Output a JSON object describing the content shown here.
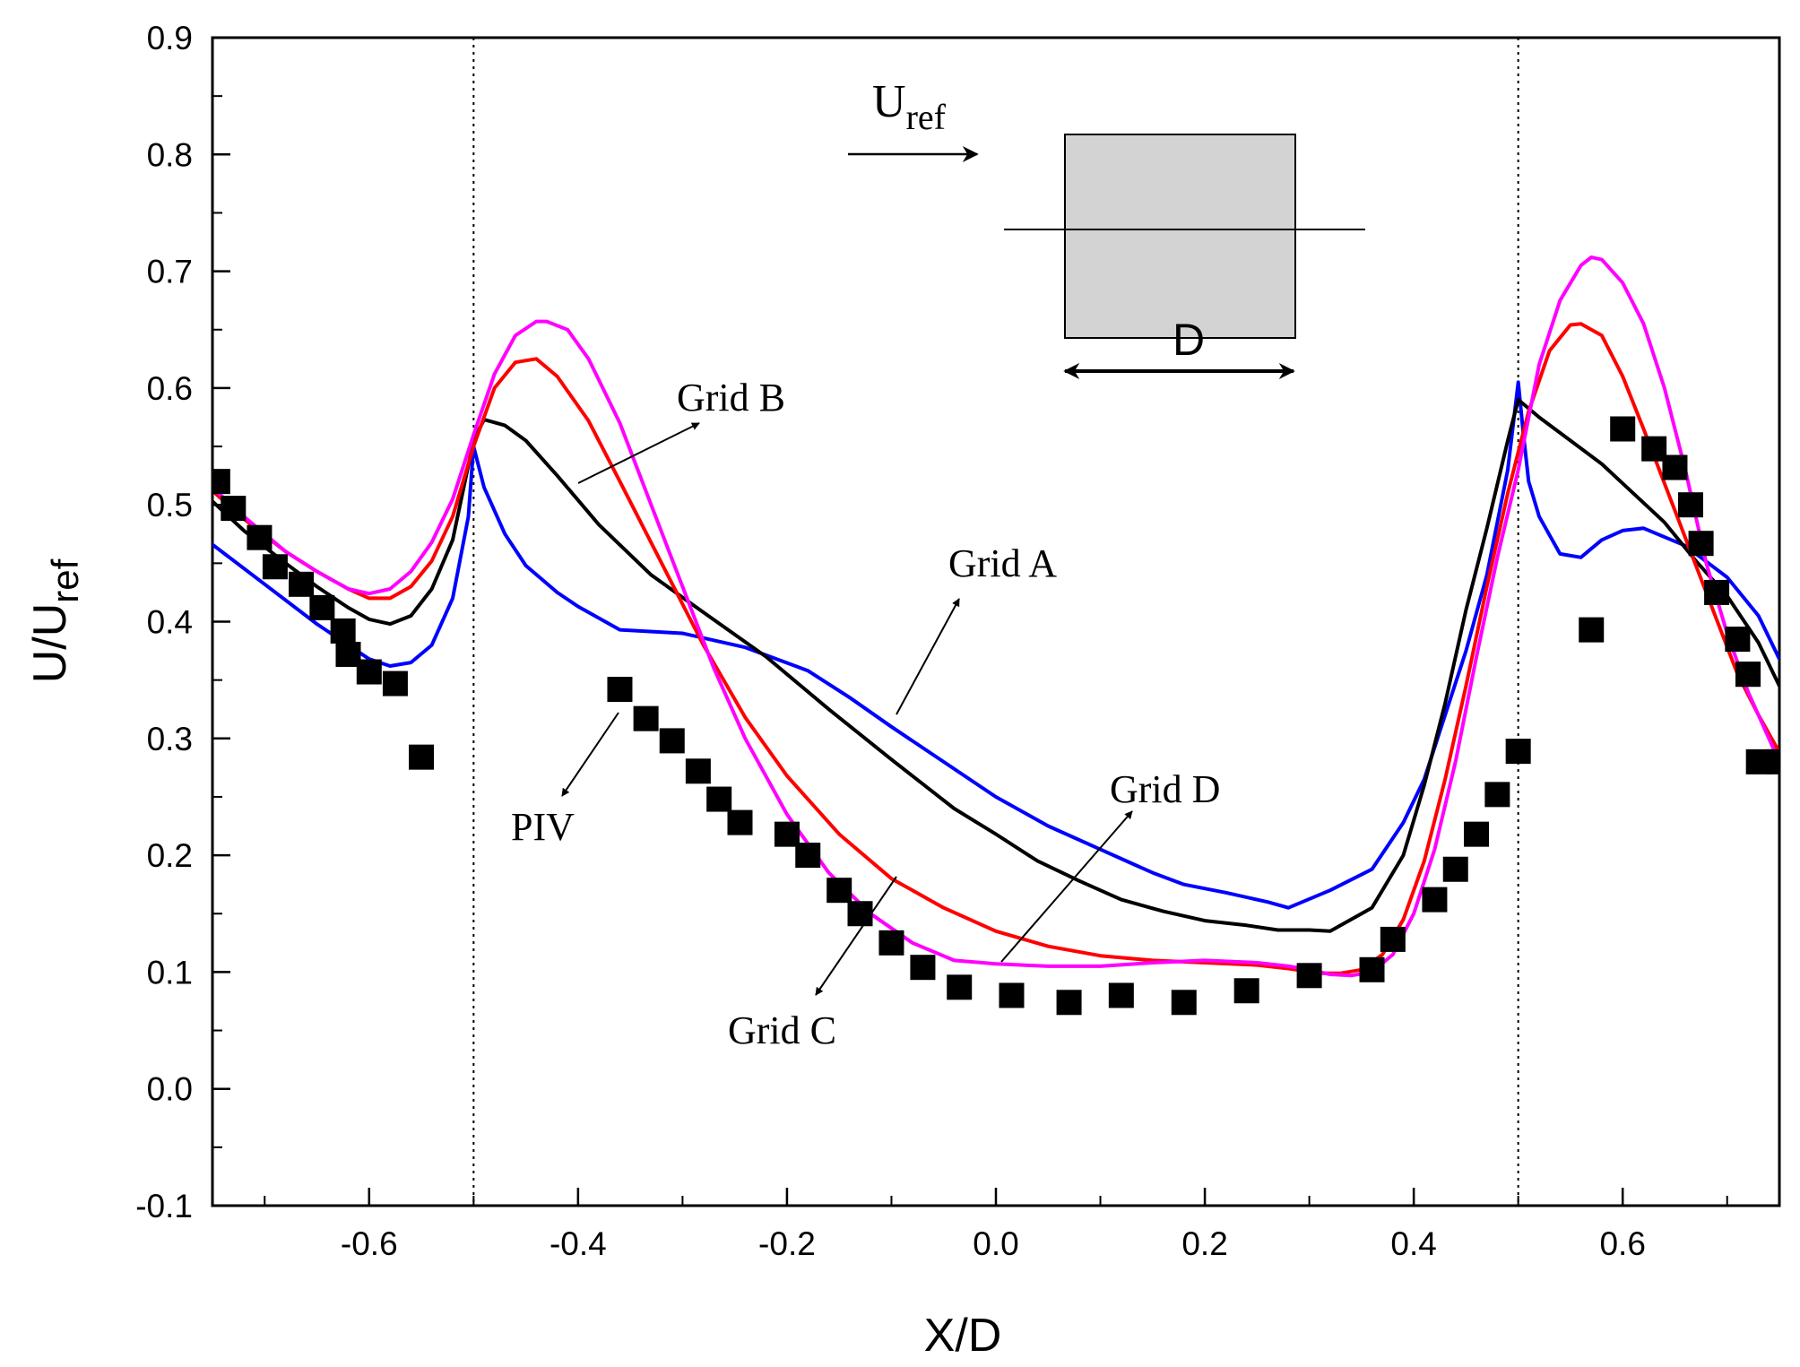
{
  "chart_data": {
    "type": "line",
    "title": "",
    "xlabel": "X/D",
    "ylabel": {
      "main": "U/U",
      "sub": "ref"
    },
    "xlim": [
      -0.75,
      0.75
    ],
    "ylim": [
      -0.1,
      0.9
    ],
    "x_ticks": [
      "-0.6",
      "-0.4",
      "-0.2",
      "0.0",
      "0.2",
      "0.4",
      "0.6"
    ],
    "y_ticks": [
      "-0.1",
      "0.0",
      "0.1",
      "0.2",
      "0.3",
      "0.4",
      "0.5",
      "0.6",
      "0.7",
      "0.8",
      "0.9"
    ],
    "grid": false,
    "reference_lines_x": [
      -0.5,
      0.5
    ],
    "series": [
      {
        "name": "Grid A",
        "color": "#0000ff",
        "x": [
          -0.75,
          -0.7,
          -0.65,
          -0.62,
          -0.6,
          -0.58,
          -0.56,
          -0.54,
          -0.52,
          -0.505,
          -0.5,
          -0.49,
          -0.47,
          -0.45,
          -0.42,
          -0.4,
          -0.36,
          -0.3,
          -0.24,
          -0.18,
          -0.14,
          -0.1,
          -0.05,
          0.0,
          0.05,
          0.1,
          0.15,
          0.18,
          0.22,
          0.26,
          0.28,
          0.32,
          0.36,
          0.39,
          0.41,
          0.43,
          0.45,
          0.47,
          0.49,
          0.5,
          0.505,
          0.51,
          0.52,
          0.54,
          0.56,
          0.58,
          0.6,
          0.62,
          0.66,
          0.7,
          0.73,
          0.75
        ],
        "values": [
          0.466,
          0.432,
          0.398,
          0.38,
          0.368,
          0.362,
          0.365,
          0.38,
          0.42,
          0.49,
          0.55,
          0.515,
          0.475,
          0.448,
          0.425,
          0.413,
          0.393,
          0.39,
          0.378,
          0.358,
          0.335,
          0.31,
          0.28,
          0.25,
          0.225,
          0.205,
          0.185,
          0.175,
          0.168,
          0.16,
          0.155,
          0.17,
          0.188,
          0.228,
          0.265,
          0.32,
          0.375,
          0.44,
          0.53,
          0.605,
          0.56,
          0.52,
          0.49,
          0.458,
          0.455,
          0.47,
          0.478,
          0.48,
          0.465,
          0.438,
          0.405,
          0.368
        ]
      },
      {
        "name": "Grid B",
        "color": "#000000",
        "x": [
          -0.75,
          -0.72,
          -0.68,
          -0.65,
          -0.62,
          -0.6,
          -0.58,
          -0.56,
          -0.54,
          -0.52,
          -0.5,
          -0.49,
          -0.47,
          -0.45,
          -0.42,
          -0.38,
          -0.33,
          -0.28,
          -0.22,
          -0.16,
          -0.1,
          -0.04,
          0.0,
          0.04,
          0.08,
          0.12,
          0.16,
          0.2,
          0.24,
          0.27,
          0.3,
          0.32,
          0.36,
          0.39,
          0.41,
          0.43,
          0.45,
          0.47,
          0.49,
          0.5,
          0.52,
          0.55,
          0.58,
          0.61,
          0.64,
          0.67,
          0.7,
          0.73,
          0.75
        ],
        "values": [
          0.503,
          0.478,
          0.45,
          0.43,
          0.412,
          0.402,
          0.398,
          0.405,
          0.428,
          0.47,
          0.555,
          0.573,
          0.568,
          0.555,
          0.525,
          0.483,
          0.44,
          0.408,
          0.37,
          0.325,
          0.282,
          0.24,
          0.218,
          0.195,
          0.178,
          0.162,
          0.152,
          0.144,
          0.14,
          0.136,
          0.136,
          0.135,
          0.155,
          0.2,
          0.26,
          0.33,
          0.41,
          0.48,
          0.555,
          0.59,
          0.575,
          0.555,
          0.535,
          0.51,
          0.485,
          0.452,
          0.422,
          0.382,
          0.345
        ]
      },
      {
        "name": "Grid C",
        "color": "#ff0000",
        "x": [
          -0.75,
          -0.72,
          -0.68,
          -0.65,
          -0.62,
          -0.6,
          -0.58,
          -0.56,
          -0.54,
          -0.52,
          -0.5,
          -0.48,
          -0.46,
          -0.44,
          -0.42,
          -0.39,
          -0.36,
          -0.32,
          -0.28,
          -0.24,
          -0.2,
          -0.15,
          -0.1,
          -0.05,
          0.0,
          0.05,
          0.1,
          0.15,
          0.2,
          0.25,
          0.28,
          0.31,
          0.33,
          0.35,
          0.37,
          0.39,
          0.41,
          0.43,
          0.45,
          0.47,
          0.49,
          0.51,
          0.53,
          0.55,
          0.56,
          0.58,
          0.6,
          0.62,
          0.65,
          0.68,
          0.71,
          0.73,
          0.75
        ],
        "values": [
          0.512,
          0.488,
          0.46,
          0.443,
          0.428,
          0.42,
          0.42,
          0.43,
          0.452,
          0.49,
          0.55,
          0.6,
          0.622,
          0.625,
          0.61,
          0.572,
          0.52,
          0.45,
          0.38,
          0.318,
          0.268,
          0.218,
          0.18,
          0.155,
          0.135,
          0.122,
          0.114,
          0.11,
          0.108,
          0.106,
          0.103,
          0.099,
          0.099,
          0.102,
          0.115,
          0.145,
          0.195,
          0.265,
          0.345,
          0.43,
          0.51,
          0.58,
          0.632,
          0.654,
          0.655,
          0.645,
          0.61,
          0.565,
          0.495,
          0.425,
          0.355,
          0.32,
          0.288
        ]
      },
      {
        "name": "Grid D",
        "color": "#ff00ff",
        "x": [
          -0.75,
          -0.72,
          -0.68,
          -0.65,
          -0.62,
          -0.6,
          -0.58,
          -0.56,
          -0.54,
          -0.52,
          -0.5,
          -0.48,
          -0.46,
          -0.44,
          -0.43,
          -0.41,
          -0.39,
          -0.36,
          -0.33,
          -0.3,
          -0.27,
          -0.24,
          -0.2,
          -0.16,
          -0.12,
          -0.08,
          -0.04,
          0.0,
          0.05,
          0.1,
          0.15,
          0.2,
          0.25,
          0.28,
          0.3,
          0.32,
          0.34,
          0.36,
          0.38,
          0.4,
          0.42,
          0.44,
          0.46,
          0.48,
          0.5,
          0.52,
          0.54,
          0.56,
          0.57,
          0.58,
          0.6,
          0.62,
          0.64,
          0.66,
          0.68,
          0.7,
          0.72,
          0.75
        ],
        "values": [
          0.515,
          0.49,
          0.46,
          0.443,
          0.428,
          0.424,
          0.428,
          0.443,
          0.468,
          0.505,
          0.56,
          0.612,
          0.645,
          0.657,
          0.657,
          0.65,
          0.625,
          0.57,
          0.5,
          0.43,
          0.36,
          0.3,
          0.235,
          0.185,
          0.15,
          0.125,
          0.11,
          0.107,
          0.105,
          0.105,
          0.108,
          0.11,
          0.108,
          0.105,
          0.102,
          0.098,
          0.097,
          0.1,
          0.115,
          0.15,
          0.205,
          0.28,
          0.37,
          0.455,
          0.53,
          0.62,
          0.675,
          0.705,
          0.712,
          0.71,
          0.69,
          0.655,
          0.6,
          0.53,
          0.45,
          0.39,
          0.34,
          0.28
        ]
      },
      {
        "name": "PIV",
        "color": "#000000",
        "marker": "square",
        "x": [
          -0.745,
          -0.73,
          -0.705,
          -0.69,
          -0.665,
          -0.645,
          -0.625,
          -0.62,
          -0.6,
          -0.575,
          -0.55,
          -0.36,
          -0.335,
          -0.31,
          -0.285,
          -0.265,
          -0.245,
          -0.2,
          -0.18,
          -0.15,
          -0.13,
          -0.1,
          -0.07,
          -0.035,
          0.015,
          0.07,
          0.12,
          0.18,
          0.24,
          0.3,
          0.36,
          0.38,
          0.42,
          0.44,
          0.46,
          0.48,
          0.5,
          0.57,
          0.6,
          0.63,
          0.65,
          0.665,
          0.675,
          0.69,
          0.71,
          0.72,
          0.72,
          0.73,
          0.75
        ],
        "values": [
          0.52,
          0.497,
          0.472,
          0.447,
          0.432,
          0.412,
          0.392,
          0.372,
          0.357,
          0.347,
          0.284,
          0.342,
          0.317,
          0.298,
          0.272,
          0.248,
          0.228,
          0.218,
          0.2,
          0.17,
          0.15,
          0.125,
          0.104,
          0.087,
          0.08,
          0.074,
          0.08,
          0.074,
          0.084,
          0.097,
          0.102,
          0.128,
          0.162,
          0.188,
          0.218,
          0.252,
          0.289,
          0.393,
          0.565,
          0.548,
          0.532,
          0.5,
          0.467,
          0.425,
          0.385,
          0.355,
          0.355,
          0.28,
          0.28
        ]
      }
    ],
    "annotations": [
      {
        "text": "Grid B",
        "series": "Grid B"
      },
      {
        "text": "Grid A",
        "series": "Grid A"
      },
      {
        "text": "Grid D",
        "series": "Grid D"
      },
      {
        "text": "Grid C",
        "series": "Grid C"
      },
      {
        "text": "PIV",
        "series": "PIV"
      }
    ],
    "inset": {
      "flow_label": {
        "main": "U",
        "sub": "ref"
      },
      "dimension_label": "D"
    }
  }
}
